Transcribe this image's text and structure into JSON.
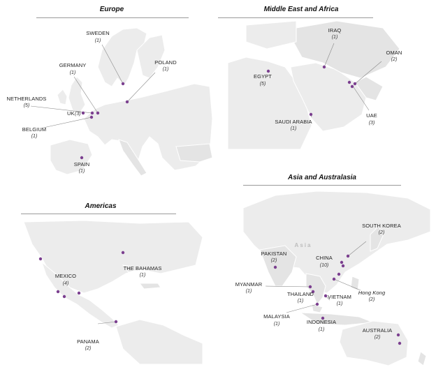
{
  "panels": {
    "europe": {
      "title": "Europe",
      "locations": [
        {
          "name": "SWEDEN",
          "count": "(1)"
        },
        {
          "name": "POLAND",
          "count": "(1)"
        },
        {
          "name": "GERMANY",
          "count": "(1)"
        },
        {
          "name": "NETHERLANDS",
          "count": "(5)"
        },
        {
          "name": "UK",
          "count": "(3)"
        },
        {
          "name": "BELGIUM",
          "count": "(1)"
        },
        {
          "name": "SPAIN",
          "count": "(1)"
        }
      ]
    },
    "mea": {
      "title": "Middle East and Africa",
      "locations": [
        {
          "name": "IRAQ",
          "count": "(1)"
        },
        {
          "name": "OMAN",
          "count": "(2)"
        },
        {
          "name": "EGYPT",
          "count": "(5)"
        },
        {
          "name": "SAUDI ARABIA",
          "count": "(1)"
        },
        {
          "name": "UAE",
          "count": "(3)"
        }
      ]
    },
    "americas": {
      "title": "Americas",
      "locations": [
        {
          "name": "MEXICO",
          "count": "(4)"
        },
        {
          "name": "THE BAHAMAS",
          "count": "(1)"
        },
        {
          "name": "PANAMA",
          "count": "(2)"
        }
      ]
    },
    "asia": {
      "title": "Asia and Australasia",
      "region_label": "Asia",
      "locations": [
        {
          "name": "SOUTH KOREA",
          "count": "(2)"
        },
        {
          "name": "PAKISTAN",
          "count": "(2)"
        },
        {
          "name": "CHINA",
          "count": "(10)"
        },
        {
          "name": "MYANMAR",
          "count": "(1)"
        },
        {
          "name": "THAILAND",
          "count": "(1)"
        },
        {
          "name": "VIETNAM",
          "count": "(1)"
        },
        {
          "name": "Hong Kong",
          "count": "(2)"
        },
        {
          "name": "MALAYSIA",
          "count": "(1)"
        },
        {
          "name": "INDONESIA",
          "count": "(1)"
        },
        {
          "name": "AUSTRALIA",
          "count": "(2)"
        }
      ]
    }
  },
  "colors": {
    "marker": "#7b3f8f",
    "land": "#ececec",
    "rule": "#9a9a9a"
  }
}
